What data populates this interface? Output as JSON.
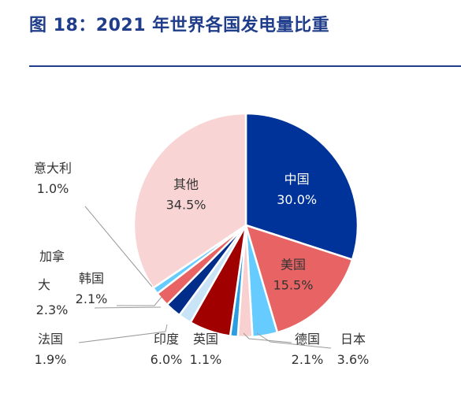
{
  "title": "图 18：2021 年世界各国发电量比重",
  "chart_data": {
    "type": "pie",
    "title": "图 18：2021 年世界各国发电量比重",
    "slices": [
      {
        "label": "中国",
        "value": 30.0,
        "value_label": "30.0%",
        "color": "#003399"
      },
      {
        "label": "美国",
        "value": 15.5,
        "value_label": "15.5%",
        "color": "#e86464"
      },
      {
        "label": "日本",
        "value": 3.6,
        "value_label": "3.6%",
        "color": "#66ccff"
      },
      {
        "label": "德国",
        "value": 2.1,
        "value_label": "2.1%",
        "color": "#f9d0d0"
      },
      {
        "label": "英国",
        "value": 1.1,
        "value_label": "1.1%",
        "color": "#2b9de0"
      },
      {
        "label": "印度",
        "value": 6.0,
        "value_label": "6.0%",
        "color": "#a00000"
      },
      {
        "label": "法国",
        "value": 1.9,
        "value_label": "1.9%",
        "color": "#c9e4f7"
      },
      {
        "label": "加拿大",
        "value": 2.3,
        "value_label": "2.3%",
        "color": "#002c8a"
      },
      {
        "label": "韩国",
        "value": 2.1,
        "value_label": "2.1%",
        "color": "#e86464"
      },
      {
        "label": "意大利",
        "value": 1.0,
        "value_label": "1.0%",
        "color": "#66ccff"
      },
      {
        "label": "其他",
        "value": 34.5,
        "value_label": "34.5%",
        "color": "#f9d4d4"
      }
    ]
  }
}
